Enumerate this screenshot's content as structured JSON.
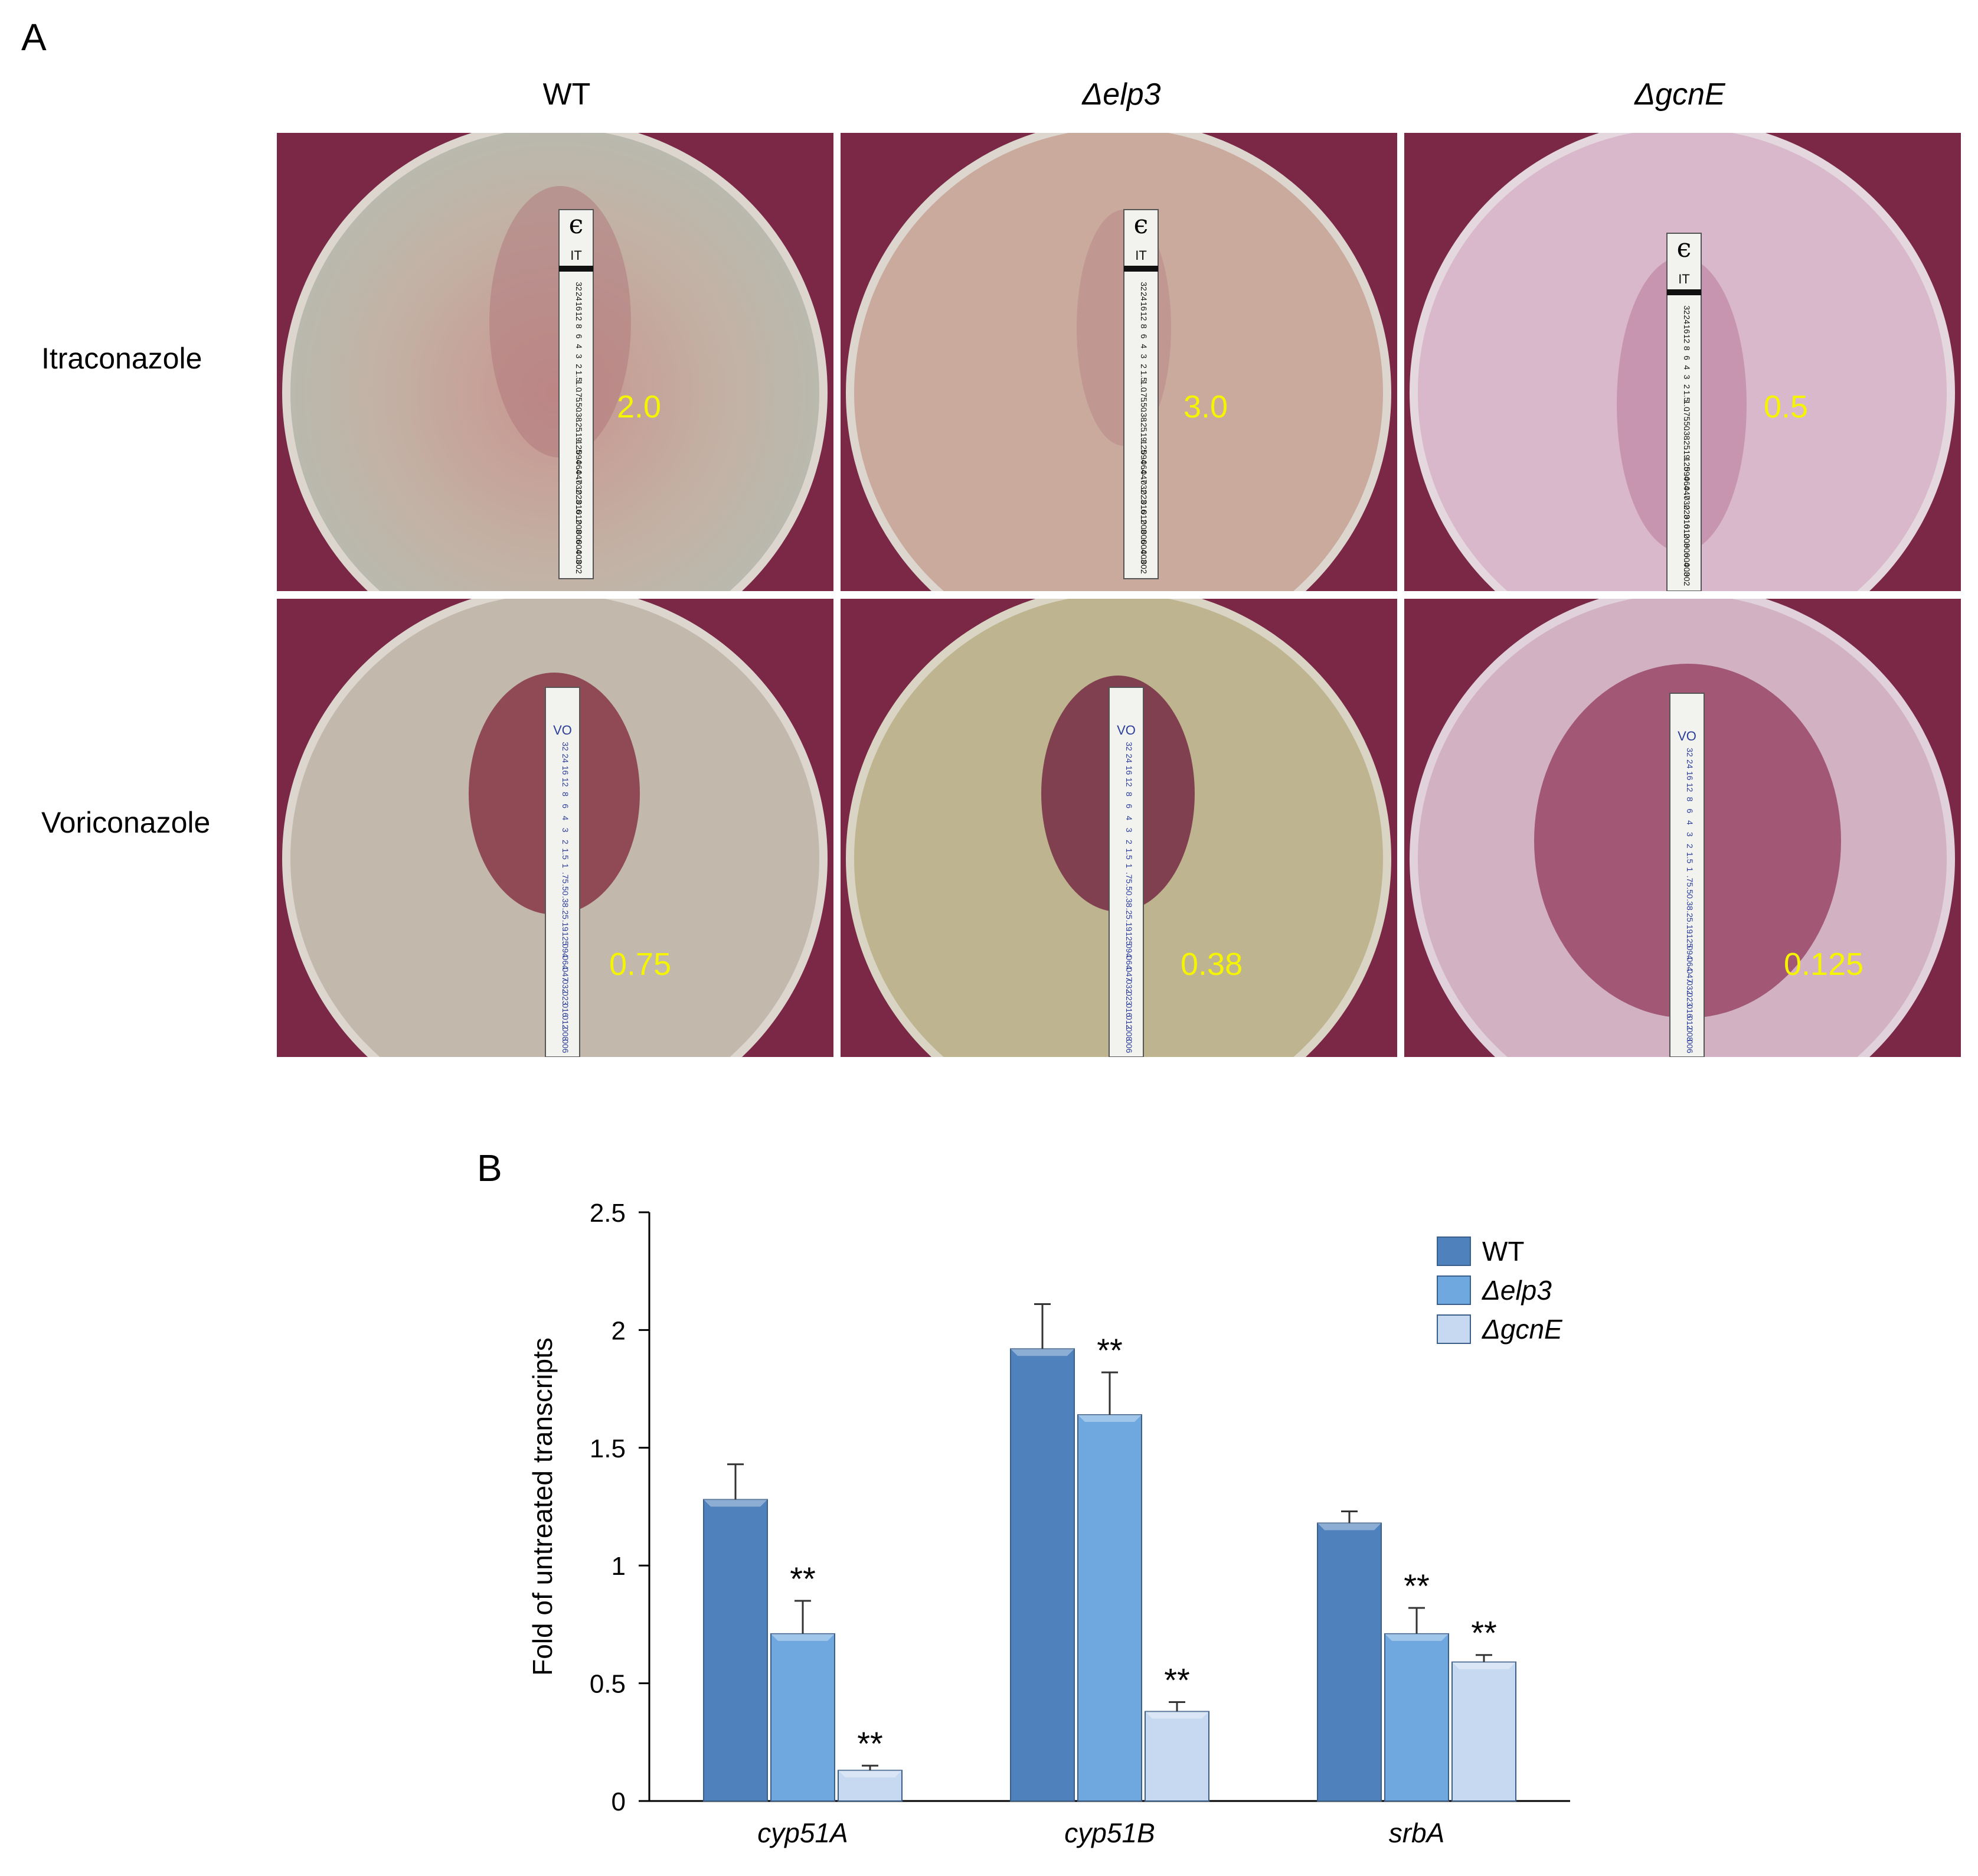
{
  "panel_a": {
    "label": "A",
    "columns": [
      "WT",
      "Δelp3",
      "ΔgcnE"
    ],
    "rows": [
      {
        "label": "Itraconazole",
        "strip_code": "IT",
        "strip_logo": "ϵ",
        "mic_values": [
          "2.0",
          "3.0",
          "0.5"
        ],
        "scale": [
          "32",
          "24",
          "16",
          "12",
          "8",
          "6",
          "4",
          "3",
          "2",
          "1.5",
          "1.0",
          ".75",
          ".50",
          ".38",
          ".25",
          ".19",
          ".125",
          ".094",
          ".064",
          ".047",
          ".032",
          ".023",
          ".016",
          ".012",
          ".008",
          ".006",
          ".004",
          ".003",
          ".002"
        ]
      },
      {
        "label": "Voriconazole",
        "strip_code": "VO",
        "strip_logo": "",
        "mic_values": [
          "0.75",
          "0.38",
          "0.125"
        ],
        "scale": [
          "32",
          "24",
          "16",
          "12",
          "8",
          "6",
          "4",
          "3",
          "2",
          "1.5",
          "1",
          ".75",
          ".50",
          ".38",
          ".25",
          ".19",
          ".125",
          ".094",
          ".064",
          ".047",
          ".032",
          ".023",
          ".016",
          ".012",
          ".008",
          ".006"
        ]
      }
    ],
    "colors": {
      "background": "#7a2846",
      "mic_text": "#f5f500"
    }
  },
  "panel_b": {
    "label": "B"
  },
  "chart_data": {
    "type": "bar",
    "categories": [
      "cyp51A",
      "cyp51B",
      "srbA"
    ],
    "series": [
      {
        "name": "WT",
        "values": [
          1.28,
          1.92,
          1.18
        ],
        "errors": [
          0.15,
          0.19,
          0.05
        ],
        "color": "#4f81bd"
      },
      {
        "name": "Δelp3",
        "values": [
          0.71,
          1.64,
          0.71
        ],
        "errors": [
          0.14,
          0.18,
          0.11
        ],
        "color": "#6ea8df"
      },
      {
        "name": "ΔgcnE",
        "values": [
          0.13,
          0.38,
          0.59
        ],
        "errors": [
          0.02,
          0.04,
          0.03
        ],
        "color": "#c6d9f1"
      }
    ],
    "significance": [
      [
        "",
        "**",
        "**"
      ],
      [
        "",
        "**",
        "**"
      ],
      [
        "",
        "**",
        "**"
      ]
    ],
    "ylabel": "Fold of untreated transcripts",
    "ylim": [
      0,
      2.5
    ],
    "yticks": [
      "0",
      "0.5",
      "1",
      "1.5",
      "2",
      "2.5"
    ],
    "legend_position": "top-right"
  }
}
